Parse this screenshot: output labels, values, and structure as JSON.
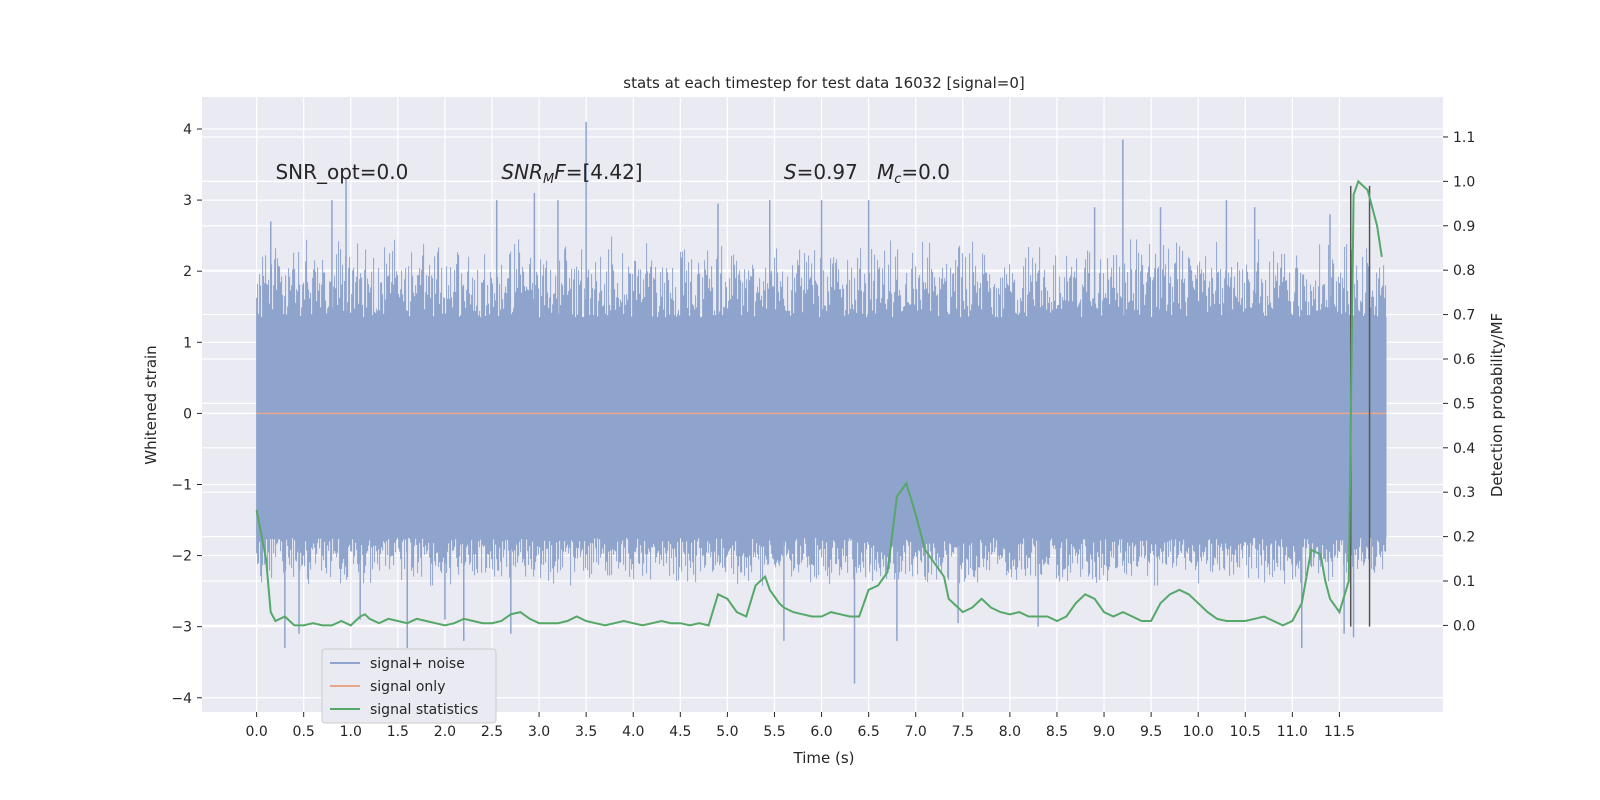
{
  "chart_data": {
    "type": "line",
    "title": "stats at each timestep for test data 16032 [signal=0]",
    "xlabel": "Time (s)",
    "ylabel_left": "Whitened strain",
    "ylabel_right": "Detection probability/MF",
    "xlim": [
      -0.58,
      12.6
    ],
    "ylim_left": [
      -4.2,
      4.45
    ],
    "ylim_right": [
      -0.195,
      1.19
    ],
    "x_ticks": [
      0.0,
      0.5,
      1.0,
      1.5,
      2.0,
      2.5,
      3.0,
      3.5,
      4.0,
      4.5,
      5.0,
      5.5,
      6.0,
      6.5,
      7.0,
      7.5,
      8.0,
      8.5,
      9.0,
      9.5,
      10.0,
      10.5,
      11.0,
      11.5
    ],
    "x_tick_labels": [
      "0.0",
      "0.5",
      "1.0",
      "1.5",
      "2.0",
      "2.5",
      "3.0",
      "3.5",
      "4.0",
      "4.5",
      "5.0",
      "5.5",
      "6.0",
      "6.5",
      "7.0",
      "7.5",
      "8.0",
      "8.5",
      "9.0",
      "9.5",
      "10.0",
      "10.5",
      "11.0",
      "11.5"
    ],
    "y_left_ticks": [
      -4,
      -3,
      -2,
      -1,
      0,
      1,
      2,
      3,
      4
    ],
    "y_left_tick_labels": [
      "−4",
      "−3",
      "−2",
      "−1",
      "0",
      "1",
      "2",
      "3",
      "4"
    ],
    "y_right_ticks": [
      0.0,
      0.1,
      0.2,
      0.3,
      0.4,
      0.5,
      0.6,
      0.7,
      0.8,
      0.9,
      1.0,
      1.1
    ],
    "y_right_tick_labels": [
      "0.0",
      "0.1",
      "0.2",
      "0.3",
      "0.4",
      "0.5",
      "0.6",
      "0.7",
      "0.8",
      "0.9",
      "1.0",
      "1.1"
    ],
    "grid": true,
    "legend_position": "lower-left",
    "legend": [
      {
        "label": "signal+ noise",
        "color": "#8fa4cc"
      },
      {
        "label": "signal only",
        "color": "#e8a58c"
      },
      {
        "label": "signal statistics",
        "color": "#55a868"
      }
    ],
    "annotations": [
      {
        "text": "SNR_opt=0.0",
        "x": 0.2,
        "y": 3.3
      },
      {
        "text": "SNR_MF=[4.42]",
        "x": 2.6,
        "y": 3.3
      },
      {
        "text": "S=0.97   M_c=0.0",
        "x": 5.6,
        "y": 3.3
      }
    ],
    "series": [
      {
        "name": "signal+ noise",
        "axis": "left",
        "style": "dense-noise",
        "x_range": [
          0.0,
          12.0
        ],
        "band_core": [
          -1.75,
          1.35
        ],
        "band_typical": [
          -2.4,
          2.4
        ],
        "spikes": [
          {
            "x": 0.15,
            "y": 2.7
          },
          {
            "x": 0.3,
            "y": -3.3
          },
          {
            "x": 0.45,
            "y": -3.1
          },
          {
            "x": 0.8,
            "y": 3.0
          },
          {
            "x": 0.95,
            "y": 3.3
          },
          {
            "x": 1.1,
            "y": -2.9
          },
          {
            "x": 1.6,
            "y": -3.3
          },
          {
            "x": 2.0,
            "y": -2.9
          },
          {
            "x": 2.2,
            "y": -3.2
          },
          {
            "x": 2.55,
            "y": 3.0
          },
          {
            "x": 2.7,
            "y": -3.1
          },
          {
            "x": 2.95,
            "y": 3.1
          },
          {
            "x": 3.2,
            "y": 3.0
          },
          {
            "x": 3.5,
            "y": 4.1
          },
          {
            "x": 4.9,
            "y": 2.95
          },
          {
            "x": 5.45,
            "y": 3.0
          },
          {
            "x": 5.6,
            "y": -3.2
          },
          {
            "x": 6.0,
            "y": 3.0
          },
          {
            "x": 6.35,
            "y": -3.8
          },
          {
            "x": 6.5,
            "y": 3.0
          },
          {
            "x": 6.8,
            "y": -3.2
          },
          {
            "x": 7.45,
            "y": -2.95
          },
          {
            "x": 8.3,
            "y": -3.0
          },
          {
            "x": 8.9,
            "y": 2.9
          },
          {
            "x": 9.2,
            "y": 3.85
          },
          {
            "x": 9.6,
            "y": 2.9
          },
          {
            "x": 10.3,
            "y": 3.0
          },
          {
            "x": 10.6,
            "y": 2.9
          },
          {
            "x": 11.1,
            "y": -3.3
          },
          {
            "x": 11.4,
            "y": 2.8
          },
          {
            "x": 11.55,
            "y": -3.1
          },
          {
            "x": 11.65,
            "y": -3.15
          }
        ],
        "color": "#8fa4cc"
      },
      {
        "name": "signal only",
        "axis": "left",
        "x": [
          0.0,
          12.0
        ],
        "y": [
          0.0,
          0.0
        ],
        "color": "#e8a58c"
      },
      {
        "name": "signal statistics",
        "axis": "right",
        "x": [
          0.0,
          0.1,
          0.15,
          0.2,
          0.3,
          0.4,
          0.5,
          0.6,
          0.7,
          0.8,
          0.9,
          1.0,
          1.1,
          1.15,
          1.2,
          1.3,
          1.4,
          1.5,
          1.6,
          1.7,
          1.8,
          1.9,
          2.0,
          2.1,
          2.2,
          2.3,
          2.4,
          2.5,
          2.6,
          2.7,
          2.8,
          2.9,
          3.0,
          3.1,
          3.2,
          3.3,
          3.4,
          3.5,
          3.6,
          3.7,
          3.8,
          3.9,
          4.0,
          4.1,
          4.2,
          4.3,
          4.4,
          4.5,
          4.6,
          4.7,
          4.8,
          4.9,
          5.0,
          5.1,
          5.2,
          5.3,
          5.4,
          5.45,
          5.55,
          5.6,
          5.7,
          5.8,
          5.9,
          6.0,
          6.1,
          6.2,
          6.3,
          6.4,
          6.5,
          6.6,
          6.7,
          6.8,
          6.9,
          7.0,
          7.1,
          7.2,
          7.3,
          7.35,
          7.45,
          7.5,
          7.6,
          7.7,
          7.8,
          7.9,
          8.0,
          8.1,
          8.2,
          8.3,
          8.4,
          8.5,
          8.6,
          8.7,
          8.8,
          8.9,
          9.0,
          9.1,
          9.2,
          9.3,
          9.4,
          9.5,
          9.6,
          9.7,
          9.8,
          9.9,
          10.0,
          10.1,
          10.2,
          10.3,
          10.4,
          10.5,
          10.6,
          10.7,
          10.8,
          10.9,
          11.0,
          11.1,
          11.2,
          11.3,
          11.35,
          11.4,
          11.5,
          11.6,
          11.65,
          11.7,
          11.8,
          11.9,
          11.95
        ],
        "y": [
          0.26,
          0.15,
          0.03,
          0.01,
          0.02,
          0.0,
          0.0,
          0.005,
          0.0,
          0.0,
          0.01,
          0.0,
          0.02,
          0.025,
          0.015,
          0.005,
          0.015,
          0.01,
          0.005,
          0.015,
          0.01,
          0.005,
          0.0,
          0.005,
          0.015,
          0.01,
          0.005,
          0.005,
          0.01,
          0.025,
          0.03,
          0.015,
          0.005,
          0.005,
          0.005,
          0.01,
          0.02,
          0.01,
          0.005,
          0.0,
          0.005,
          0.01,
          0.005,
          0.0,
          0.005,
          0.01,
          0.005,
          0.005,
          0.0,
          0.005,
          0.0,
          0.07,
          0.06,
          0.03,
          0.02,
          0.09,
          0.11,
          0.08,
          0.05,
          0.04,
          0.03,
          0.025,
          0.02,
          0.02,
          0.03,
          0.025,
          0.02,
          0.02,
          0.08,
          0.09,
          0.12,
          0.29,
          0.32,
          0.25,
          0.17,
          0.14,
          0.11,
          0.06,
          0.04,
          0.03,
          0.04,
          0.06,
          0.04,
          0.03,
          0.025,
          0.03,
          0.02,
          0.02,
          0.02,
          0.01,
          0.02,
          0.05,
          0.07,
          0.06,
          0.03,
          0.02,
          0.03,
          0.02,
          0.01,
          0.01,
          0.05,
          0.07,
          0.08,
          0.07,
          0.05,
          0.03,
          0.015,
          0.01,
          0.01,
          0.01,
          0.015,
          0.02,
          0.01,
          0.0,
          0.01,
          0.05,
          0.17,
          0.16,
          0.1,
          0.06,
          0.03,
          0.1,
          0.97,
          1.0,
          0.98,
          0.9,
          0.83
        ],
        "color": "#55a868"
      }
    ],
    "vertical_lines": [
      {
        "x": 11.62,
        "y_range": [
          -3.0,
          3.2
        ],
        "color": "#555555"
      },
      {
        "x": 11.82,
        "y_range": [
          -3.0,
          3.2
        ],
        "color": "#555555"
      }
    ]
  }
}
